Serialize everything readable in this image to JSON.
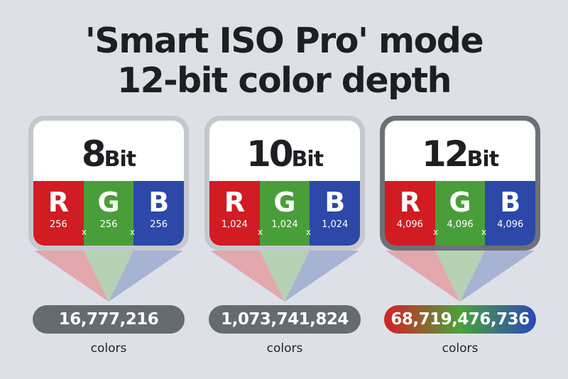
{
  "title": {
    "line1": "'Smart ISO Pro' mode",
    "line2": "12-bit color depth"
  },
  "colors": {
    "background": "#dde1e7",
    "red": "#d01c22",
    "green": "#4a9e3a",
    "blue": "#2c48a8"
  },
  "cards": [
    {
      "number": "8",
      "unit": "Bit",
      "channels": [
        {
          "letter": "R",
          "value": "256"
        },
        {
          "letter": "G",
          "value": "256"
        },
        {
          "letter": "B",
          "value": "256"
        }
      ],
      "multiply": "x",
      "total": "16,777,216",
      "total_label": "colors",
      "highlight": false
    },
    {
      "number": "10",
      "unit": "Bit",
      "channels": [
        {
          "letter": "R",
          "value": "1,024"
        },
        {
          "letter": "G",
          "value": "1,024"
        },
        {
          "letter": "B",
          "value": "1,024"
        }
      ],
      "multiply": "x",
      "total": "1,073,741,824",
      "total_label": "colors",
      "highlight": false
    },
    {
      "number": "12",
      "unit": "Bit",
      "channels": [
        {
          "letter": "R",
          "value": "4,096"
        },
        {
          "letter": "G",
          "value": "4,096"
        },
        {
          "letter": "B",
          "value": "4,096"
        }
      ],
      "multiply": "x",
      "total": "68,719,476,736",
      "total_label": "colors",
      "highlight": true
    }
  ]
}
